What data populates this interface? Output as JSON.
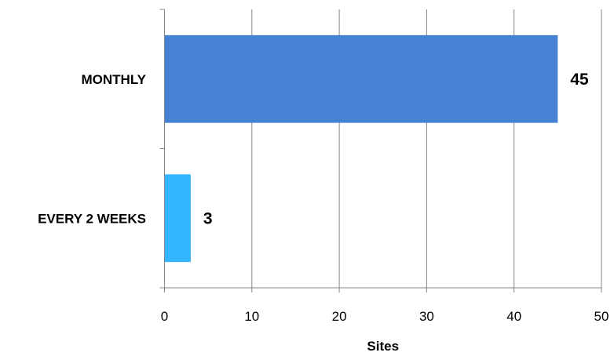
{
  "chart_data": {
    "type": "bar",
    "orientation": "horizontal",
    "categories": [
      "MONTHLY",
      "EVERY 2 WEEKS"
    ],
    "values": [
      45,
      3
    ],
    "data_labels": [
      "45",
      "3"
    ],
    "colors": [
      "#4682D3",
      "#33B5FF"
    ],
    "xlabel": "Sites",
    "ylabel": "",
    "xlim": [
      0,
      50
    ],
    "x_ticks": [
      0,
      10,
      20,
      30,
      40,
      50
    ],
    "x_tick_labels": [
      "0",
      "10",
      "20",
      "30",
      "40",
      "50"
    ],
    "grid": "vertical",
    "legend": "none"
  }
}
